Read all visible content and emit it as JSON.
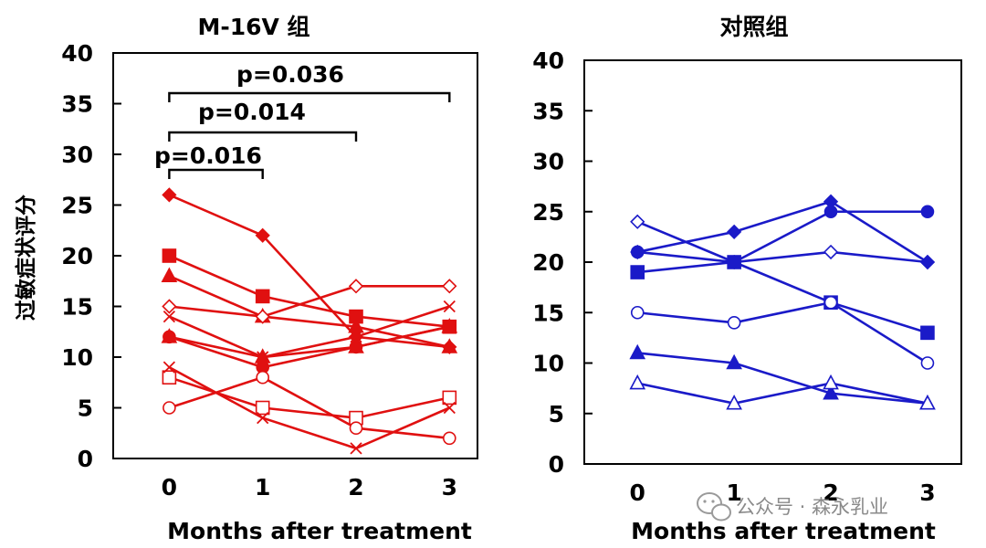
{
  "y_axis_label": "过敏症状评分",
  "watermark": {
    "text": "公众号 · 森永乳业",
    "icon": "wechat-icon"
  },
  "colors": {
    "treatment": "#e01010",
    "control": "#1a1ac8",
    "axis": "#000000"
  },
  "chart_data": [
    {
      "type": "line",
      "title": "M-16V 组",
      "xlabel": "Months after treatment",
      "ylabel": "过敏症状评分",
      "x": [
        0,
        1,
        2,
        3
      ],
      "xlim": [
        -0.6,
        3.3
      ],
      "ylim": [
        0,
        40
      ],
      "yticks": [
        0,
        5,
        10,
        15,
        20,
        25,
        30,
        35,
        40
      ],
      "color": "#e01010",
      "grid": false,
      "legend": "none",
      "series": [
        {
          "name": "filled-diamond",
          "marker": "diamond",
          "filled": true,
          "values": [
            26,
            22,
            12,
            11
          ]
        },
        {
          "name": "filled-square",
          "marker": "square",
          "filled": true,
          "values": [
            20,
            16,
            14,
            13
          ]
        },
        {
          "name": "filled-triangle",
          "marker": "triangle",
          "filled": true,
          "values": [
            18,
            14,
            13,
            11
          ]
        },
        {
          "name": "open-diamond",
          "marker": "diamond",
          "filled": false,
          "values": [
            15,
            14,
            17,
            17
          ]
        },
        {
          "name": "cross",
          "marker": "x",
          "filled": false,
          "values": [
            14,
            10,
            12,
            15
          ]
        },
        {
          "name": "filled-circle",
          "marker": "circle",
          "filled": true,
          "values": [
            12,
            9,
            11,
            13
          ]
        },
        {
          "name": "filled-triangle-2",
          "marker": "triangle",
          "filled": true,
          "values": [
            12,
            10,
            11,
            13
          ]
        },
        {
          "name": "open-square",
          "marker": "square",
          "filled": false,
          "values": [
            8,
            5,
            4,
            6
          ]
        },
        {
          "name": "open-circle",
          "marker": "circle",
          "filled": false,
          "values": [
            5,
            8,
            3,
            2
          ]
        },
        {
          "name": "cross-2",
          "marker": "x",
          "filled": false,
          "values": [
            9,
            4,
            1,
            5
          ]
        }
      ],
      "annotations": [
        {
          "text": "p=0.016",
          "from": 0,
          "to": 1
        },
        {
          "text": "p=0.014",
          "from": 0,
          "to": 2
        },
        {
          "text": "p=0.036",
          "from": 0,
          "to": 3
        }
      ]
    },
    {
      "type": "line",
      "title": "对照组",
      "xlabel": "Months after treatment",
      "ylabel": "",
      "x": [
        0,
        1,
        2,
        3
      ],
      "xlim": [
        -0.55,
        3.35
      ],
      "ylim": [
        0,
        40
      ],
      "yticks": [
        0,
        5,
        10,
        15,
        20,
        25,
        30,
        35,
        40
      ],
      "color": "#1a1ac8",
      "grid": false,
      "legend": "none",
      "series": [
        {
          "name": "open-diamond",
          "marker": "diamond",
          "filled": false,
          "values": [
            24,
            20,
            21,
            20
          ]
        },
        {
          "name": "filled-diamond",
          "marker": "diamond",
          "filled": true,
          "values": [
            21,
            23,
            26,
            20
          ]
        },
        {
          "name": "filled-circle",
          "marker": "circle",
          "filled": true,
          "values": [
            21,
            20,
            25,
            25
          ]
        },
        {
          "name": "filled-square",
          "marker": "square",
          "filled": true,
          "values": [
            19,
            20,
            16,
            13
          ]
        },
        {
          "name": "open-circle",
          "marker": "circle",
          "filled": false,
          "values": [
            15,
            14,
            16,
            10
          ]
        },
        {
          "name": "filled-triangle",
          "marker": "triangle",
          "filled": true,
          "values": [
            11,
            10,
            7,
            6
          ]
        },
        {
          "name": "open-triangle",
          "marker": "triangle",
          "filled": false,
          "values": [
            8,
            6,
            8,
            6
          ]
        }
      ],
      "annotations": []
    }
  ]
}
